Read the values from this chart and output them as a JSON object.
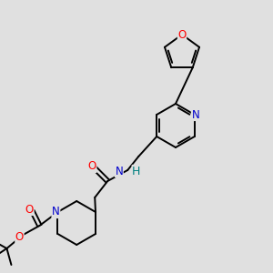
{
  "background_color": "#e0e0e0",
  "bond_color": "#000000",
  "atom_colors": {
    "O": "#ff0000",
    "N": "#0000cc",
    "H": "#008080",
    "C": "#000000"
  },
  "figsize": [
    3.0,
    3.0
  ],
  "dpi": 100
}
